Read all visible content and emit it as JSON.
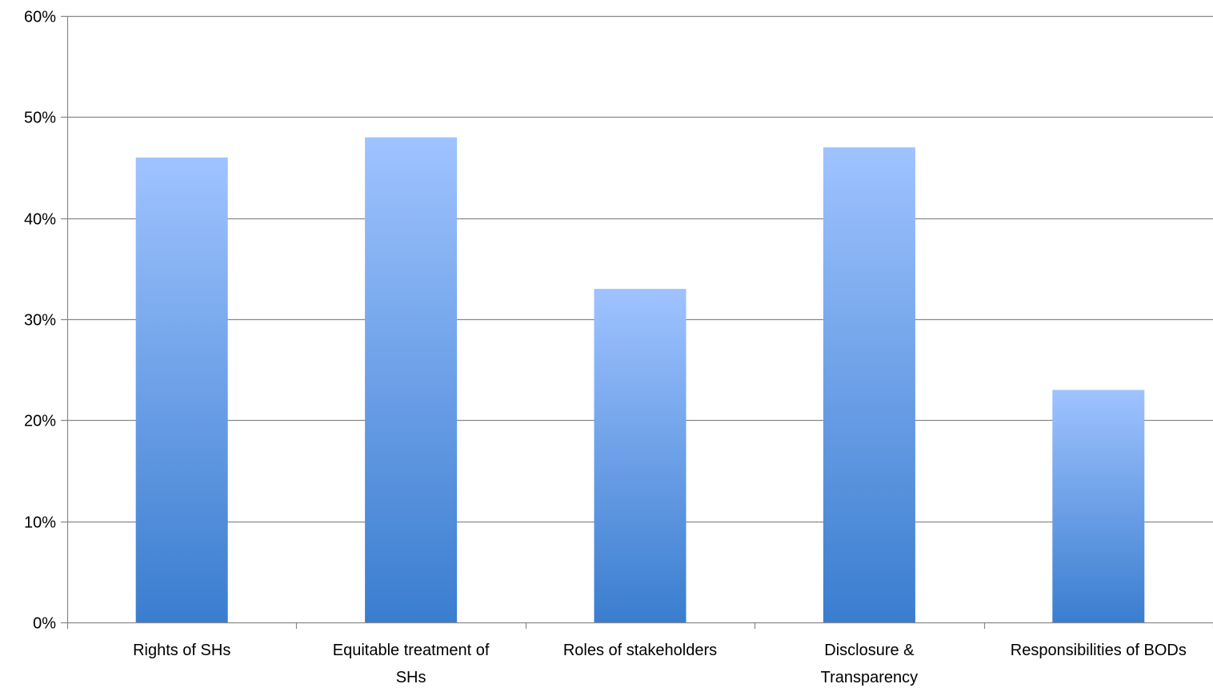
{
  "chart_data": {
    "type": "bar",
    "title": "",
    "xlabel": "",
    "ylabel": "",
    "categories": [
      "Rights of SHs",
      "Equitable treatment of SHs",
      "Roles of stakeholders",
      "Disclosure & Transparency",
      "Responsibilities of BODs"
    ],
    "category_label_lines": [
      [
        "Rights of SHs"
      ],
      [
        "Equitable treatment of",
        "SHs"
      ],
      [
        "Roles of stakeholders"
      ],
      [
        "Disclosure &",
        "Transparency"
      ],
      [
        "Responsibilities of BODs"
      ]
    ],
    "values": [
      0.46,
      0.48,
      0.33,
      0.47,
      0.23
    ],
    "ylim": [
      0,
      0.6
    ],
    "yticks": [
      0,
      0.1,
      0.2,
      0.3,
      0.4,
      0.5,
      0.6
    ],
    "ytick_labels": [
      "0%",
      "10%",
      "20%",
      "30%",
      "40%",
      "50%",
      "60%"
    ],
    "grid": true,
    "legend": "none",
    "colors": {
      "bar_top": "#9fc3ff",
      "bar_bottom": "#3a7dcf",
      "gridline": "#888888",
      "axis": "#888888"
    }
  }
}
